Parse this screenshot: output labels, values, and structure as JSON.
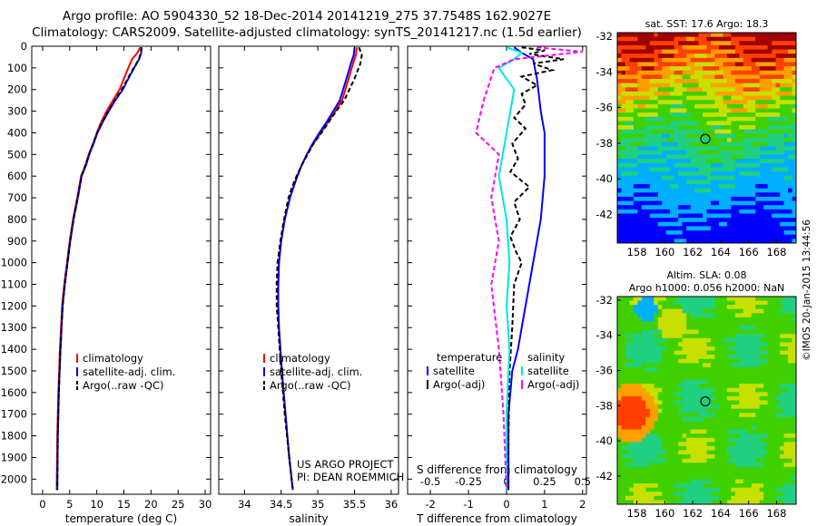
{
  "titles": {
    "line1": "Argo profile: AO 5904330_52 18-Dec-2014 20141219_275 37.7548S 162.9027E",
    "line2": "Climatology: CARS2009. Satellite-adjusted climatology: synTS_20141217.nc (1.5d earlier)"
  },
  "stamp": "©IMOS 20-Jan-2015 13:44:56",
  "project": {
    "line1": "US ARGO PROJECT",
    "line2": "PI: DEAN ROEMMICH"
  },
  "colors": {
    "climatology": "#ff0000",
    "satellite": "#0000ff",
    "argo": "#000000",
    "sal_satellite": "#00e5e5",
    "sal_argo": "#ff00ff"
  },
  "chart_data": [
    {
      "type": "line",
      "xlabel": "temperature (deg C)",
      "xlim": [
        -2,
        31
      ],
      "ylim": [
        2070,
        0
      ],
      "xticks": [
        "0",
        "5",
        "10",
        "15",
        "20",
        "25",
        "30"
      ],
      "yticks": [
        "0",
        "100",
        "200",
        "300",
        "400",
        "500",
        "600",
        "700",
        "800",
        "900",
        "1000",
        "1100",
        "1200",
        "1300",
        "1400",
        "1500",
        "1600",
        "1700",
        "1800",
        "1900",
        "2000"
      ],
      "legend": [
        "climatology",
        "satellite-adj. clim.",
        "Argo(..raw -QC)"
      ],
      "series": [
        {
          "name": "climatology",
          "color": "#ff0000",
          "dash": "",
          "x": [
            18.0,
            17.5,
            16.5,
            15.8,
            15.0,
            14.2,
            13.0,
            11.8,
            10.8,
            10.0,
            9.3,
            8.5,
            7.9,
            7.1,
            6.4,
            5.6,
            5.0,
            4.5,
            4.0,
            3.6,
            3.2,
            2.9,
            2.7,
            2.6
          ],
          "y": [
            5,
            30,
            60,
            100,
            150,
            200,
            250,
            300,
            350,
            400,
            450,
            500,
            550,
            600,
            700,
            800,
            900,
            1000,
            1100,
            1200,
            1400,
            1600,
            1800,
            2050
          ]
        },
        {
          "name": "satellite-adj. clim.",
          "color": "#0000ff",
          "dash": "",
          "x": [
            18.2,
            18.2,
            17.8,
            16.9,
            15.8,
            14.8,
            13.4,
            12.2,
            11.1,
            10.1,
            9.4,
            8.6,
            8.0,
            7.2,
            6.5,
            5.7,
            5.1,
            4.6,
            4.1,
            3.7,
            3.3,
            3.0,
            2.8,
            2.7
          ],
          "y": [
            5,
            30,
            60,
            100,
            150,
            200,
            250,
            300,
            350,
            400,
            450,
            500,
            550,
            600,
            700,
            800,
            900,
            1000,
            1100,
            1200,
            1400,
            1600,
            1800,
            2050
          ]
        },
        {
          "name": "Argo(..raw -QC)",
          "color": "#000000",
          "dash": "5,3",
          "x": [
            18.3,
            18.1,
            17.8,
            16.8,
            15.7,
            14.6,
            13.3,
            12.1,
            11.0,
            10.1,
            9.3,
            8.6,
            7.9,
            7.2,
            6.5,
            5.7,
            5.1,
            4.6,
            4.1,
            3.7,
            3.3,
            3.0,
            2.8,
            2.7
          ],
          "y": [
            5,
            30,
            60,
            100,
            150,
            200,
            250,
            300,
            350,
            400,
            450,
            500,
            550,
            600,
            700,
            800,
            900,
            1000,
            1100,
            1200,
            1400,
            1600,
            1800,
            2050
          ]
        }
      ]
    },
    {
      "type": "line",
      "xlabel": "salinity",
      "xlim": [
        33.65,
        36.1
      ],
      "ylim": [
        2070,
        0
      ],
      "xticks": [
        "34",
        "34.5",
        "35",
        "35.5",
        "36"
      ],
      "legend": [
        "climatology",
        "satellite-adj. clim.",
        "Argo(..raw -QC)"
      ],
      "series": [
        {
          "name": "climatology",
          "color": "#ff0000",
          "dash": "",
          "x": [
            35.53,
            35.52,
            35.48,
            35.42,
            35.33,
            35.24,
            35.14,
            35.04,
            34.94,
            34.85,
            34.78,
            34.72,
            34.67,
            34.62,
            34.55,
            34.5,
            34.47,
            34.46,
            34.46,
            34.47,
            34.51,
            34.56,
            34.61,
            34.66
          ],
          "y": [
            5,
            40,
            80,
            150,
            250,
            300,
            350,
            400,
            450,
            500,
            550,
            600,
            650,
            700,
            800,
            900,
            1000,
            1100,
            1200,
            1300,
            1500,
            1700,
            1900,
            2050
          ]
        },
        {
          "name": "satellite-adj. clim.",
          "color": "#0000ff",
          "dash": "",
          "x": [
            35.5,
            35.49,
            35.45,
            35.39,
            35.3,
            35.21,
            35.12,
            35.02,
            34.93,
            34.85,
            34.78,
            34.72,
            34.67,
            34.62,
            34.55,
            34.5,
            34.47,
            34.46,
            34.46,
            34.47,
            34.51,
            34.56,
            34.61,
            34.66
          ],
          "y": [
            5,
            40,
            80,
            150,
            250,
            300,
            350,
            400,
            450,
            500,
            550,
            600,
            650,
            700,
            800,
            900,
            1000,
            1100,
            1200,
            1300,
            1500,
            1700,
            1900,
            2050
          ]
        },
        {
          "name": "Argo(..raw -QC)",
          "color": "#000000",
          "dash": "5,3",
          "x": [
            35.56,
            35.6,
            35.58,
            35.5,
            35.36,
            35.25,
            35.15,
            35.05,
            34.94,
            34.86,
            34.78,
            34.71,
            34.65,
            34.6,
            34.54,
            34.49,
            34.45,
            34.44,
            34.44,
            34.46,
            34.5,
            34.55,
            34.61,
            34.66
          ],
          "y": [
            5,
            40,
            80,
            150,
            250,
            300,
            350,
            400,
            450,
            500,
            550,
            600,
            650,
            700,
            800,
            900,
            1000,
            1100,
            1200,
            1300,
            1500,
            1700,
            1900,
            2050
          ]
        }
      ]
    },
    {
      "type": "line",
      "xlabel": "T difference from climatology",
      "xlabel_top": "S difference from climatology",
      "xlim": [
        -2.6,
        2.1
      ],
      "ylim": [
        2070,
        0
      ],
      "xticks": [
        "-2",
        "-1",
        "0",
        "1",
        "2"
      ],
      "xticks_top": [
        "-0.5",
        "-0.25",
        "0",
        "0.25",
        "0.5"
      ],
      "legend_headers": [
        "temperature",
        "salinity"
      ],
      "legend_t": [
        "satellite",
        "Argo(-adj)"
      ],
      "legend_s": [
        "satellite",
        "Argo(-adj)"
      ],
      "series": [
        {
          "name": "satellite",
          "color": "#0000ff",
          "dash": "",
          "x": [
            0.2,
            0.4,
            0.7,
            0.8,
            0.9,
            1.0,
            1.0,
            1.0,
            0.95,
            0.9,
            0.8,
            0.7,
            0.6,
            0.5,
            0.4,
            0.3,
            0.15,
            0.05,
            0.05
          ],
          "y": [
            5,
            30,
            60,
            150,
            300,
            400,
            500,
            600,
            700,
            800,
            900,
            1000,
            1100,
            1200,
            1300,
            1400,
            1500,
            1700,
            2050
          ]
        },
        {
          "name": "Argo(-adj)",
          "color": "#000000",
          "dash": "5,3",
          "x": [
            0.4,
            1.0,
            0.6,
            1.5,
            0.7,
            1.2,
            0.4,
            0.8,
            0.4,
            0.5,
            0.2,
            0.5,
            0.15,
            0.3,
            0.1,
            0.6,
            0.2,
            0.35,
            0.1,
            0.25,
            0.4,
            0.2,
            0.15,
            0.08,
            0.05,
            0.05
          ],
          "y": [
            5,
            20,
            35,
            60,
            80,
            110,
            140,
            180,
            220,
            270,
            330,
            380,
            450,
            520,
            580,
            650,
            720,
            800,
            880,
            950,
            1000,
            1100,
            1300,
            1500,
            1800,
            2050
          ]
        },
        {
          "name": "satellite",
          "color": "#00e5e5",
          "dash": "",
          "x": [
            0.0,
            0.1,
            0.05,
            -0.05,
            0.05,
            0.0,
            -0.05,
            0.0,
            0.02,
            0.0,
            0.02,
            0.0,
            0.0
          ],
          "y": [
            5,
            30,
            60,
            100,
            200,
            400,
            600,
            800,
            1000,
            1200,
            1400,
            1700,
            2050
          ]
        },
        {
          "name": "Argo(-adj)",
          "color": "#ff00ff",
          "dash": "5,3",
          "x": [
            0.2,
            0.5,
            0.05,
            -0.08,
            -0.15,
            -0.2,
            -0.05,
            -0.1,
            -0.05,
            -0.1,
            -0.05,
            -0.02,
            0.0
          ],
          "y": [
            5,
            25,
            60,
            100,
            250,
            400,
            500,
            700,
            900,
            1100,
            1400,
            1700,
            2050
          ]
        }
      ]
    }
  ],
  "maps": [
    {
      "title_lines": [
        "sat. SST: 17.6 Argo: 18.3"
      ],
      "kind": "sst"
    },
    {
      "title_lines": [
        "Altim. SLA: 0.08",
        "Argo h1000: 0.056 h2000: NaN"
      ],
      "kind": "sla"
    }
  ],
  "map_axes": {
    "xticks": [
      "158",
      "160",
      "162",
      "164",
      "166",
      "168"
    ],
    "yticks": [
      "-32",
      "-34",
      "-36",
      "-38",
      "-40",
      "-42"
    ]
  }
}
